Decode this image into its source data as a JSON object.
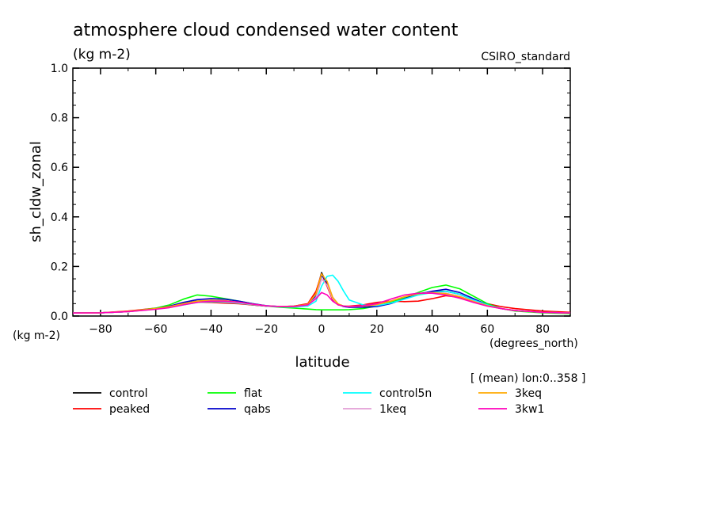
{
  "chart_data": {
    "type": "line",
    "title": "atmosphere cloud condensed water content",
    "units": "(kg m-2)",
    "source": "CSIRO_standard",
    "xlabel": "latitude",
    "xunits": "(degrees_north)",
    "ylabel": "sh_cldw_zonal",
    "yunits": "(kg m-2)",
    "footnote": "[ (mean) lon:0..358 ]",
    "xlim": [
      -90,
      90
    ],
    "ylim": [
      0,
      1.0
    ],
    "xticks": [
      -80,
      -60,
      -40,
      -20,
      0,
      20,
      40,
      60,
      80
    ],
    "yticks": [
      "0.0",
      "0.2",
      "0.4",
      "0.6",
      "0.8",
      "1.0"
    ],
    "x": [
      -90,
      -80,
      -70,
      -60,
      -55,
      -50,
      -45,
      -40,
      -35,
      -30,
      -25,
      -20,
      -15,
      -10,
      -5,
      -2,
      0,
      2,
      4,
      6,
      8,
      10,
      15,
      20,
      25,
      30,
      35,
      40,
      45,
      50,
      55,
      60,
      65,
      70,
      80,
      90
    ],
    "series": [
      {
        "name": "control",
        "color": "#000000",
        "values": [
          0.012,
          0.013,
          0.018,
          0.03,
          0.038,
          0.05,
          0.06,
          0.062,
          0.058,
          0.052,
          0.045,
          0.04,
          0.038,
          0.04,
          0.048,
          0.09,
          0.175,
          0.13,
          0.07,
          0.048,
          0.04,
          0.037,
          0.037,
          0.04,
          0.055,
          0.075,
          0.09,
          0.098,
          0.1,
          0.088,
          0.065,
          0.045,
          0.03,
          0.022,
          0.015,
          0.012
        ]
      },
      {
        "name": "peaked",
        "color": "#ff0000",
        "values": [
          0.012,
          0.013,
          0.02,
          0.032,
          0.04,
          0.05,
          0.056,
          0.055,
          0.052,
          0.05,
          0.045,
          0.04,
          0.038,
          0.04,
          0.05,
          0.1,
          0.17,
          0.12,
          0.065,
          0.045,
          0.04,
          0.04,
          0.045,
          0.055,
          0.06,
          0.058,
          0.06,
          0.07,
          0.082,
          0.075,
          0.06,
          0.05,
          0.038,
          0.03,
          0.02,
          0.015
        ]
      },
      {
        "name": "flat",
        "color": "#00ff00",
        "values": [
          0.012,
          0.013,
          0.018,
          0.032,
          0.045,
          0.068,
          0.085,
          0.08,
          0.07,
          0.06,
          0.05,
          0.04,
          0.035,
          0.032,
          0.028,
          0.026,
          0.025,
          0.025,
          0.025,
          0.025,
          0.025,
          0.026,
          0.03,
          0.04,
          0.055,
          0.075,
          0.095,
          0.115,
          0.125,
          0.11,
          0.08,
          0.05,
          0.03,
          0.02,
          0.013,
          0.01
        ]
      },
      {
        "name": "qabs",
        "color": "#0000cc",
        "values": [
          0.012,
          0.013,
          0.018,
          0.03,
          0.04,
          0.055,
          0.066,
          0.07,
          0.068,
          0.06,
          0.05,
          0.042,
          0.038,
          0.038,
          0.046,
          0.08,
          0.165,
          0.135,
          0.075,
          0.048,
          0.038,
          0.035,
          0.035,
          0.038,
          0.05,
          0.07,
          0.088,
          0.1,
          0.108,
          0.095,
          0.07,
          0.045,
          0.03,
          0.022,
          0.015,
          0.012
        ]
      },
      {
        "name": "control5n",
        "color": "#00ffff",
        "values": [
          0.012,
          0.013,
          0.018,
          0.028,
          0.035,
          0.045,
          0.055,
          0.058,
          0.056,
          0.052,
          0.046,
          0.04,
          0.037,
          0.036,
          0.04,
          0.06,
          0.12,
          0.16,
          0.165,
          0.14,
          0.1,
          0.065,
          0.045,
          0.042,
          0.052,
          0.068,
          0.085,
          0.095,
          0.1,
          0.088,
          0.065,
          0.045,
          0.03,
          0.022,
          0.015,
          0.012
        ]
      },
      {
        "name": "1keq",
        "color": "#e29ed6",
        "values": [
          0.012,
          0.013,
          0.018,
          0.028,
          0.036,
          0.048,
          0.058,
          0.06,
          0.058,
          0.054,
          0.047,
          0.041,
          0.038,
          0.038,
          0.044,
          0.075,
          0.15,
          0.125,
          0.07,
          0.047,
          0.04,
          0.038,
          0.04,
          0.045,
          0.06,
          0.078,
          0.09,
          0.095,
          0.092,
          0.08,
          0.06,
          0.042,
          0.03,
          0.022,
          0.015,
          0.012
        ]
      },
      {
        "name": "3keq",
        "color": "#ffaa00",
        "values": [
          0.012,
          0.013,
          0.019,
          0.03,
          0.038,
          0.05,
          0.06,
          0.064,
          0.062,
          0.056,
          0.048,
          0.041,
          0.038,
          0.039,
          0.047,
          0.09,
          0.17,
          0.14,
          0.075,
          0.049,
          0.04,
          0.038,
          0.04,
          0.046,
          0.06,
          0.078,
          0.09,
          0.094,
          0.09,
          0.078,
          0.058,
          0.042,
          0.03,
          0.022,
          0.015,
          0.012
        ]
      },
      {
        "name": "3kw1",
        "color": "#ff00bb",
        "values": [
          0.012,
          0.013,
          0.018,
          0.027,
          0.034,
          0.045,
          0.055,
          0.06,
          0.06,
          0.056,
          0.048,
          0.041,
          0.038,
          0.038,
          0.045,
          0.07,
          0.095,
          0.085,
          0.06,
          0.045,
          0.04,
          0.038,
          0.042,
          0.05,
          0.068,
          0.085,
          0.092,
          0.092,
          0.085,
          0.072,
          0.055,
          0.04,
          0.03,
          0.022,
          0.015,
          0.012
        ]
      }
    ],
    "legend_order": [
      "control",
      "flat",
      "control5n",
      "3keq",
      "peaked",
      "qabs",
      "1keq",
      "3kw1"
    ],
    "legend_placement": "bottom",
    "grid": false
  }
}
